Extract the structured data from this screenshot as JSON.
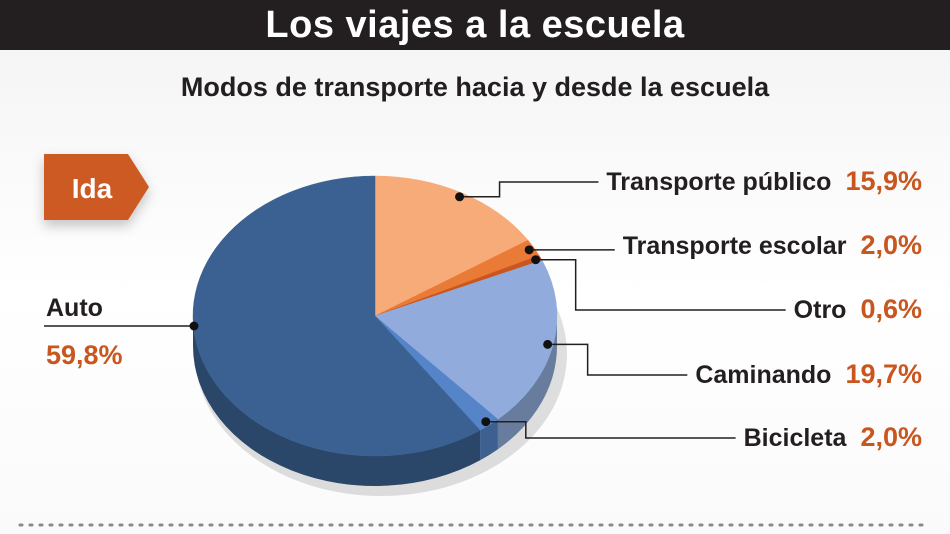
{
  "header": {
    "title": "Los viajes a la escuela",
    "subtitle": "Modos de transporte hacia y desde la escuela"
  },
  "badge": {
    "label": "Ida",
    "color": "#cc5a20"
  },
  "chart_data": {
    "type": "pie",
    "title": "Modos de transporte hacia y desde la escuela",
    "section_label": "Ida",
    "slices": [
      {
        "name": "Transporte público",
        "value": 15.9,
        "display": "15,9%",
        "color": "#f7ab78"
      },
      {
        "name": "Transporte escolar",
        "value": 2.0,
        "display": "2,0%",
        "color": "#ea7b36"
      },
      {
        "name": "Otro",
        "value": 0.6,
        "display": "0,6%",
        "color": "#c9561e"
      },
      {
        "name": "Caminando",
        "value": 19.7,
        "display": "19,7%",
        "color": "#91acdc"
      },
      {
        "name": "Bicicleta",
        "value": 2.0,
        "display": "2,0%",
        "color": "#5585c8"
      },
      {
        "name": "Auto",
        "value": 59.8,
        "display": "59,8%",
        "color": "#3b6192"
      }
    ],
    "legend": "callout-labels",
    "value_color": "#c9561e"
  }
}
